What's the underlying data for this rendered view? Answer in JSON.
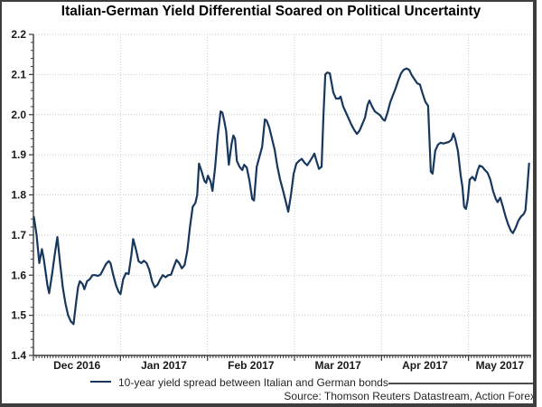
{
  "title": "Italian-German Yield Differential Soared on Political Uncertainty",
  "legend": {
    "label": "10-year yield spread between Italian and German bonds"
  },
  "source": "Source: Thomson Reuters Datastream, Action Forex",
  "colors": {
    "line": "#17375d",
    "axis": "#3c3c3c",
    "grid": "#c9c9c9",
    "frame_border": "#3e3e3e",
    "text": "#262626",
    "separator": "#4f4f4f"
  },
  "chart_data": {
    "type": "line",
    "title": "Italian-German Yield Differential Soared on Political Uncertainty",
    "xlabel": "",
    "ylabel": "",
    "x_unit": "months since 1 Dec 2016",
    "x_tick_labels": [
      "Dec 2016",
      "Jan 2017",
      "Feb 2017",
      "Mar 2017",
      "Apr 2017",
      "May 2017"
    ],
    "y_tick_labels": [
      "2.2",
      "2.1",
      "2.0",
      "1.9",
      "1.8",
      "1.7",
      "1.6",
      "1.5",
      "1.4"
    ],
    "x_range": [
      0,
      5.72
    ],
    "y_range": [
      1.4,
      2.2
    ],
    "y_major_step": 0.1,
    "y_minor_step": 0.02,
    "grid": true,
    "legend_position": "bottom-left",
    "series": [
      {
        "name": "10-year yield spread between Italian and German bonds",
        "color": "#17375d",
        "x": [
          0.005,
          0.036,
          0.067,
          0.098,
          0.119,
          0.161,
          0.181,
          0.213,
          0.244,
          0.275,
          0.306,
          0.337,
          0.368,
          0.399,
          0.43,
          0.461,
          0.492,
          0.513,
          0.534,
          0.565,
          0.586,
          0.617,
          0.648,
          0.679,
          0.71,
          0.741,
          0.772,
          0.803,
          0.835,
          0.866,
          0.886,
          0.918,
          0.949,
          0.98,
          1.001,
          1.032,
          1.063,
          1.094,
          1.125,
          1.146,
          1.177,
          1.208,
          1.239,
          1.27,
          1.301,
          1.332,
          1.363,
          1.394,
          1.426,
          1.457,
          1.488,
          1.519,
          1.55,
          1.581,
          1.612,
          1.643,
          1.674,
          1.706,
          1.737,
          1.768,
          1.799,
          1.83,
          1.861,
          1.882,
          1.903,
          1.934,
          1.965,
          1.985,
          2.006,
          2.037,
          2.058,
          2.089,
          2.12,
          2.151,
          2.172,
          2.193,
          2.214,
          2.245,
          2.276,
          2.297,
          2.317,
          2.338,
          2.369,
          2.4,
          2.421,
          2.452,
          2.483,
          2.514,
          2.535,
          2.566,
          2.597,
          2.628,
          2.66,
          2.68,
          2.711,
          2.742,
          2.773,
          2.804,
          2.835,
          2.867,
          2.898,
          2.929,
          2.96,
          2.991,
          3.022,
          3.053,
          3.084,
          3.116,
          3.147,
          3.178,
          3.209,
          3.229,
          3.26,
          3.281,
          3.312,
          3.333,
          3.354,
          3.375,
          3.406,
          3.426,
          3.447,
          3.478,
          3.51,
          3.53,
          3.561,
          3.592,
          3.623,
          3.654,
          3.686,
          3.717,
          3.748,
          3.779,
          3.81,
          3.841,
          3.862,
          3.893,
          3.924,
          3.955,
          3.986,
          4.017,
          4.038,
          4.069,
          4.1,
          4.131,
          4.162,
          4.193,
          4.225,
          4.256,
          4.287,
          4.318,
          4.349,
          4.38,
          4.411,
          4.442,
          4.473,
          4.504,
          4.535,
          4.567,
          4.587,
          4.618,
          4.649,
          4.68,
          4.712,
          4.743,
          4.774,
          4.805,
          4.826,
          4.847,
          4.878,
          4.909,
          4.93,
          4.95,
          4.971,
          4.992,
          5.013,
          5.044,
          5.075,
          5.106,
          5.127,
          5.158,
          5.189,
          5.22,
          5.251,
          5.282,
          5.313,
          5.334,
          5.365,
          5.396,
          5.427,
          5.458,
          5.489,
          5.51,
          5.541,
          5.572,
          5.603,
          5.634,
          5.655,
          5.676,
          5.696
        ],
        "values": [
          1.745,
          1.7,
          1.63,
          1.665,
          1.64,
          1.575,
          1.555,
          1.6,
          1.65,
          1.695,
          1.63,
          1.57,
          1.53,
          1.5,
          1.485,
          1.478,
          1.535,
          1.57,
          1.585,
          1.578,
          1.565,
          1.585,
          1.59,
          1.6,
          1.6,
          1.598,
          1.602,
          1.615,
          1.628,
          1.635,
          1.63,
          1.6,
          1.575,
          1.558,
          1.553,
          1.59,
          1.605,
          1.603,
          1.65,
          1.69,
          1.665,
          1.635,
          1.63,
          1.636,
          1.63,
          1.613,
          1.585,
          1.57,
          1.576,
          1.59,
          1.6,
          1.595,
          1.6,
          1.601,
          1.62,
          1.638,
          1.63,
          1.617,
          1.625,
          1.66,
          1.72,
          1.77,
          1.78,
          1.8,
          1.878,
          1.858,
          1.835,
          1.83,
          1.848,
          1.833,
          1.81,
          1.87,
          1.95,
          2.008,
          2.005,
          1.985,
          1.96,
          1.875,
          1.925,
          1.948,
          1.94,
          1.885,
          1.87,
          1.862,
          1.875,
          1.868,
          1.835,
          1.79,
          1.786,
          1.87,
          1.895,
          1.92,
          1.988,
          1.985,
          1.968,
          1.94,
          1.912,
          1.87,
          1.838,
          1.812,
          1.785,
          1.758,
          1.8,
          1.853,
          1.878,
          1.885,
          1.89,
          1.88,
          1.874,
          1.884,
          1.895,
          1.903,
          1.88,
          1.865,
          1.87,
          2.0,
          2.1,
          2.105,
          2.103,
          2.08,
          2.055,
          2.04,
          2.04,
          2.045,
          2.02,
          2.005,
          1.99,
          1.975,
          1.962,
          1.952,
          1.96,
          1.976,
          1.992,
          2.025,
          2.035,
          2.02,
          2.008,
          2.003,
          1.998,
          1.988,
          1.985,
          2.005,
          2.03,
          2.048,
          2.065,
          2.085,
          2.103,
          2.112,
          2.115,
          2.112,
          2.098,
          2.088,
          2.078,
          2.075,
          2.052,
          2.032,
          2.022,
          1.858,
          1.853,
          1.91,
          1.925,
          1.93,
          1.928,
          1.93,
          1.932,
          1.938,
          1.953,
          1.94,
          1.91,
          1.85,
          1.82,
          1.77,
          1.765,
          1.79,
          1.838,
          1.845,
          1.836,
          1.862,
          1.873,
          1.87,
          1.862,
          1.855,
          1.838,
          1.81,
          1.79,
          1.782,
          1.793,
          1.77,
          1.745,
          1.725,
          1.71,
          1.705,
          1.718,
          1.735,
          1.746,
          1.752,
          1.762,
          1.82,
          1.878
        ]
      }
    ]
  }
}
